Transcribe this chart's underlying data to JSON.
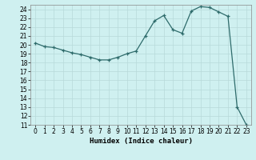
{
  "x": [
    0,
    1,
    2,
    3,
    4,
    5,
    6,
    7,
    8,
    9,
    10,
    11,
    12,
    13,
    14,
    15,
    16,
    17,
    18,
    19,
    20,
    21,
    22,
    23
  ],
  "y": [
    20.2,
    19.8,
    19.7,
    19.4,
    19.1,
    18.9,
    18.6,
    18.3,
    18.3,
    18.6,
    19.0,
    19.3,
    21.0,
    22.7,
    23.3,
    21.7,
    21.3,
    23.8,
    24.3,
    24.2,
    23.7,
    23.2,
    13.0,
    11.0
  ],
  "xlabel": "Humidex (Indice chaleur)",
  "ylim": [
    11,
    24.5
  ],
  "xlim": [
    -0.5,
    23.5
  ],
  "yticks": [
    11,
    12,
    13,
    14,
    15,
    16,
    17,
    18,
    19,
    20,
    21,
    22,
    23,
    24
  ],
  "xticks": [
    0,
    1,
    2,
    3,
    4,
    5,
    6,
    7,
    8,
    9,
    10,
    11,
    12,
    13,
    14,
    15,
    16,
    17,
    18,
    19,
    20,
    21,
    22,
    23
  ],
  "line_color": "#2e6b6b",
  "marker": "+",
  "bg_color": "#cff0f0",
  "grid_color": "#b8dada",
  "label_fontsize": 6.5,
  "tick_fontsize": 5.5
}
